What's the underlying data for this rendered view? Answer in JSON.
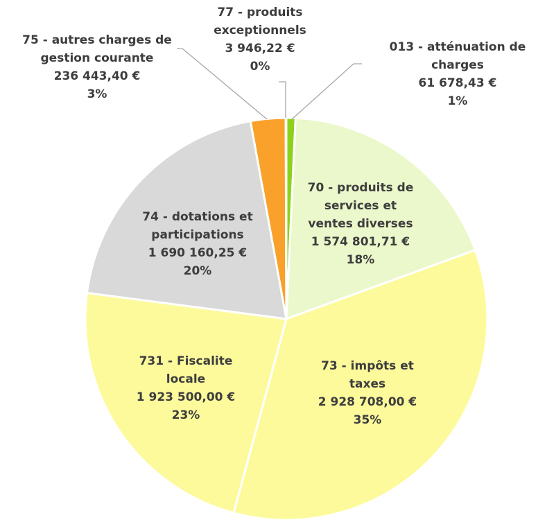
{
  "chart_data": {
    "type": "pie",
    "categories": [
      "013 - atténuation de charges",
      "70 - produits de services et ventes diverses",
      "73 - impôts et taxes",
      "731 - Fiscalite locale",
      "74 - dotations et participations",
      "75 - autres charges de gestion courante",
      "77 - produits exceptionnels"
    ],
    "values": [
      61678.43,
      1574801.71,
      2928708.0,
      1923500.0,
      1690160.25,
      236443.4,
      3946.22
    ],
    "value_labels": [
      "61 678,43 €",
      "1 574 801,71 €",
      "2 928 708,00 €",
      "1 923 500,00 €",
      "1 690 160,25 €",
      "236 443,40 €",
      "3 946,22 €"
    ],
    "percent_labels": [
      "1%",
      "18%",
      "35%",
      "23%",
      "20%",
      "3%",
      "0%"
    ],
    "colors": [
      "#8cd11c",
      "#ebf8cb",
      "#fdfa9c",
      "#fdfa9c",
      "#d9d9d9",
      "#f9a12a",
      "#f9a12a"
    ]
  }
}
